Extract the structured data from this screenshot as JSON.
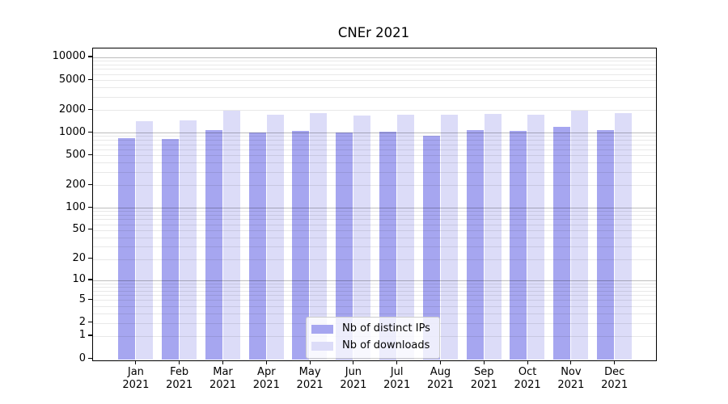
{
  "title": "CNEr 2021",
  "colors": {
    "bar_ips": "#a6a6f0",
    "bar_downloads": "#dcdcf8",
    "grid_major": "rgba(0,0,0,0.26)",
    "grid_minor": "rgba(0,0,0,0.09)",
    "spine": "#000000"
  },
  "legend": {
    "items": [
      {
        "label": "Nb of distinct IPs"
      },
      {
        "label": "Nb of downloads"
      }
    ]
  },
  "chart_data": {
    "type": "bar",
    "title": "CNEr 2021",
    "categories": [
      "Jan",
      "Feb",
      "Mar",
      "Apr",
      "May",
      "Jun",
      "Jul",
      "Aug",
      "Sep",
      "Oct",
      "Nov",
      "Dec"
    ],
    "category_year": "2021",
    "series": [
      {
        "name": "Nb of distinct IPs",
        "color": "#a6a6f0",
        "values": [
          850,
          835,
          1080,
          1010,
          1060,
          1010,
          1040,
          920,
          1080,
          1050,
          1200,
          1080
        ]
      },
      {
        "name": "Nb of downloads",
        "color": "#dcdcf8",
        "values": [
          1420,
          1460,
          1980,
          1740,
          1820,
          1700,
          1710,
          1730,
          1760,
          1730,
          1950,
          1800
        ]
      }
    ],
    "y_ticks": [
      0,
      1,
      2,
      5,
      10,
      20,
      50,
      100,
      200,
      500,
      1000,
      2000,
      5000,
      10000
    ],
    "yscale": "log1p",
    "ylim": [
      0,
      12000
    ],
    "xlabel": "",
    "ylabel": "",
    "grid": true,
    "legend_position": "lower center"
  }
}
